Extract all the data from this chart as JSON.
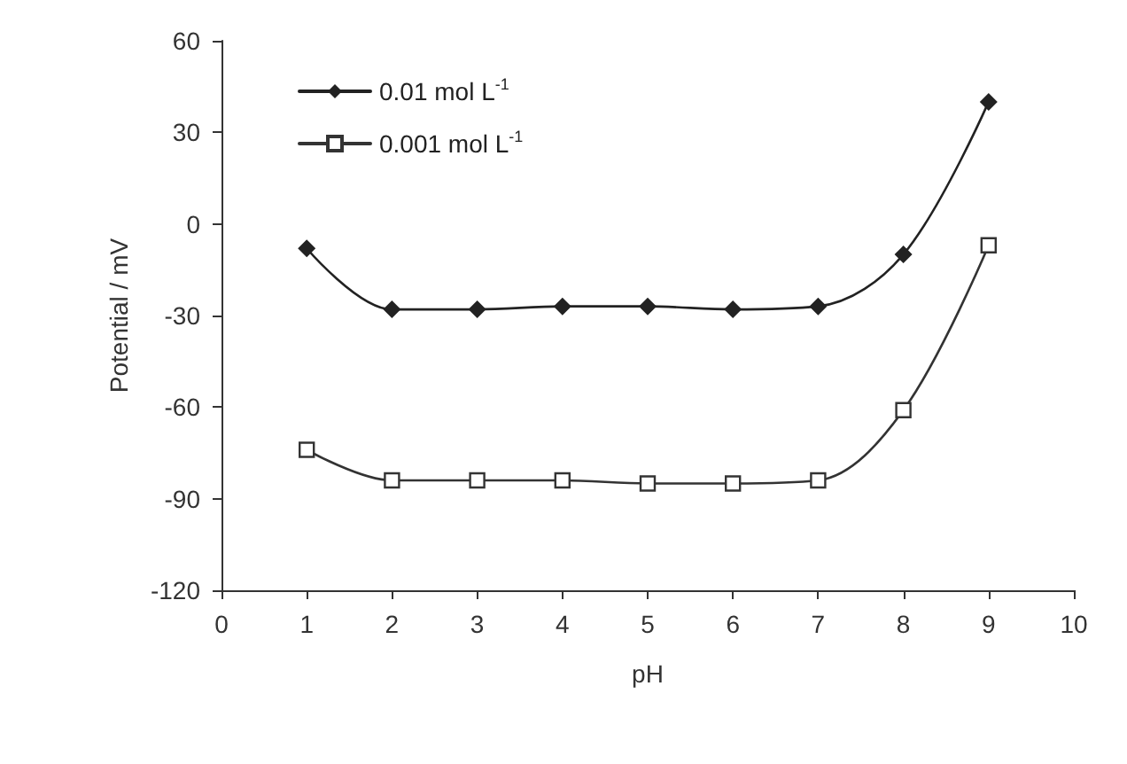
{
  "chart_data": {
    "type": "line",
    "xlabel": "pH",
    "ylabel": "Potential / mV",
    "x": [
      1,
      2,
      3,
      4,
      5,
      6,
      7,
      8,
      9
    ],
    "series": [
      {
        "name": "0.01 mol L$^{-1}$",
        "color": "#222222",
        "marker": "diamond",
        "values": [
          -8,
          -28,
          -28,
          -27,
          -27,
          -28,
          -27,
          -10,
          40
        ]
      },
      {
        "name": "0.001 mol L$^{-1}$",
        "color": "#333333",
        "marker": "square",
        "values": [
          -74,
          -84,
          -84,
          -84,
          -85,
          -85,
          -84,
          -61,
          -7
        ]
      }
    ],
    "xlim": [
      0,
      10
    ],
    "xticks": [
      0,
      1,
      2,
      3,
      4,
      5,
      6,
      7,
      8,
      9,
      10
    ],
    "ylim": [
      -120,
      60
    ],
    "yticks": [
      -120,
      -90,
      -60,
      -30,
      0,
      30,
      60
    ],
    "grid": false,
    "legend": "top left",
    "line_style": "solid"
  }
}
